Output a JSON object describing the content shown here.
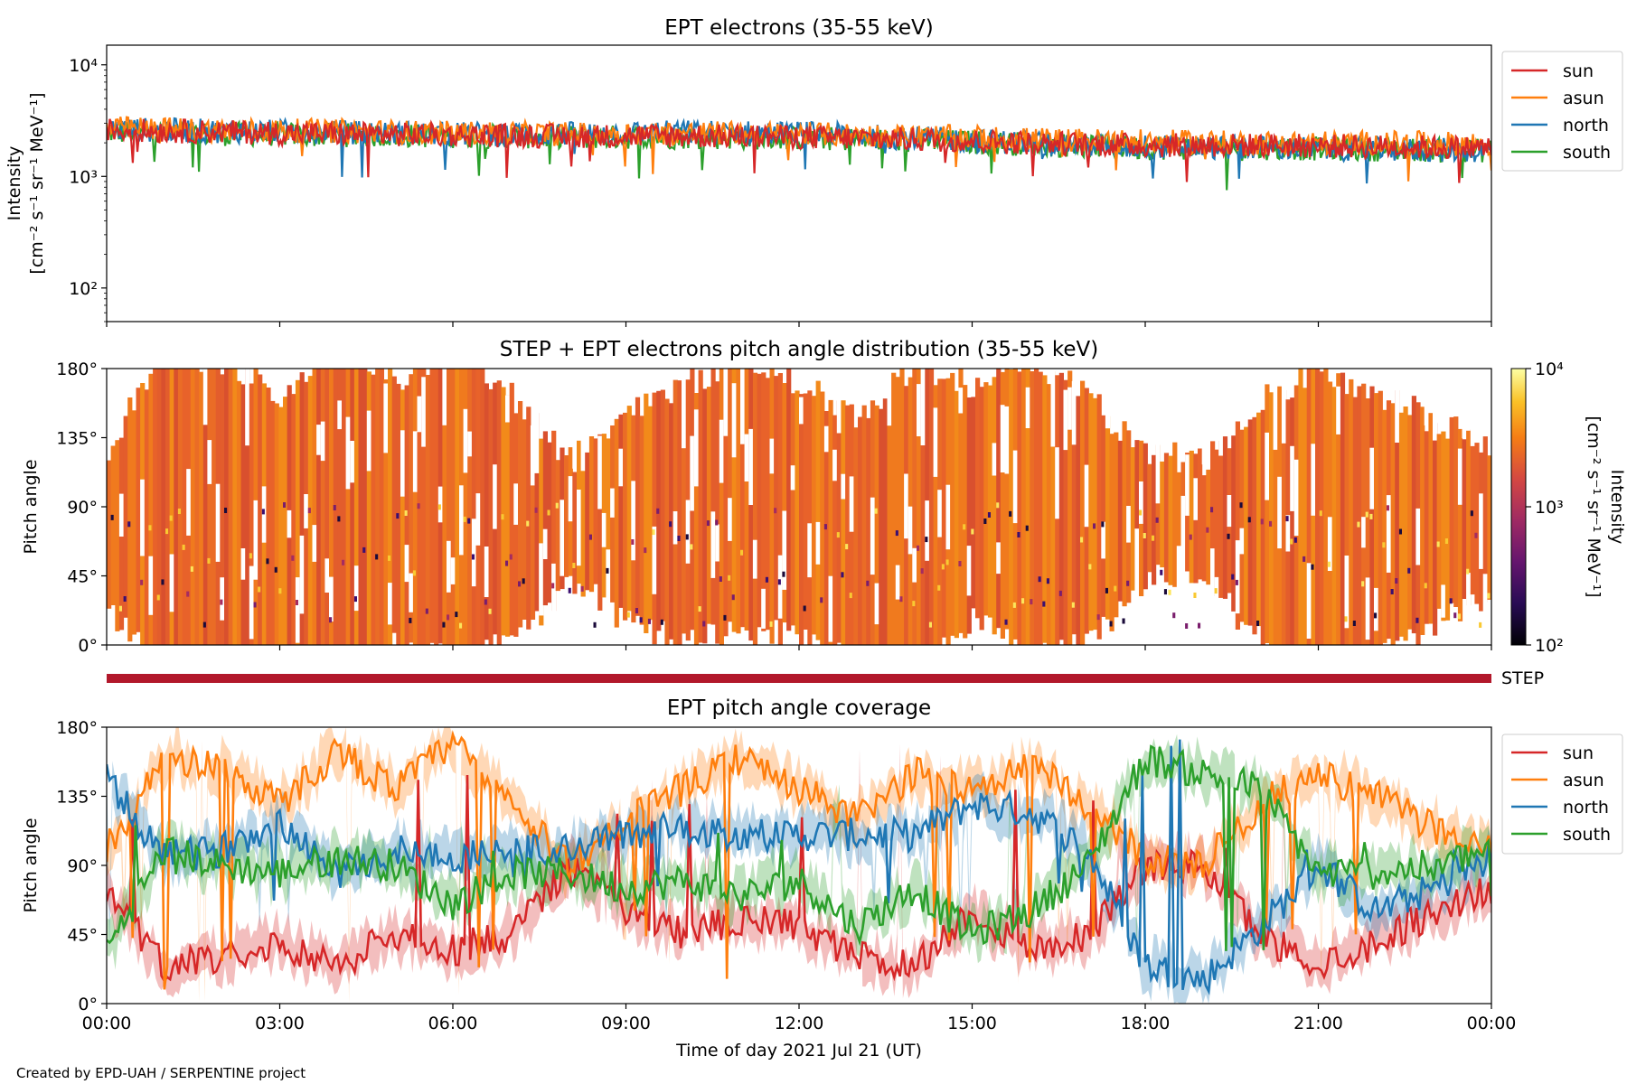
{
  "chart_data": [
    {
      "panel": "intensity",
      "type": "line",
      "title": "EPT electrons (35-55 keV)",
      "ylabel_line1": "Intensity",
      "ylabel_line2": "[cm⁻² s⁻¹ sr⁻¹ MeV⁻¹]",
      "yscale": "log",
      "ylim": [
        50,
        15000
      ],
      "yticks": [
        100,
        1000,
        10000
      ],
      "ytick_labels": [
        "10²",
        "10³",
        "10⁴"
      ],
      "xlim": [
        0,
        24
      ],
      "legend_position": "outside-right",
      "series": [
        {
          "name": "sun",
          "color": "#d62728",
          "x": [
            0,
            2,
            4,
            6,
            8,
            10,
            12,
            14,
            16,
            18,
            20,
            22,
            24
          ],
          "values": [
            2600,
            2500,
            2400,
            2350,
            2300,
            2300,
            2250,
            2150,
            2000,
            1900,
            1900,
            1850,
            1800
          ]
        },
        {
          "name": "asun",
          "color": "#ff7f0e",
          "x": [
            0,
            2,
            4,
            6,
            8,
            10,
            12,
            14,
            16,
            18,
            20,
            22,
            24
          ],
          "values": [
            2700,
            2600,
            2550,
            2450,
            2400,
            2450,
            2400,
            2300,
            2150,
            2050,
            2000,
            2000,
            1950
          ]
        },
        {
          "name": "north",
          "color": "#1f77b4",
          "x": [
            0,
            2,
            4,
            6,
            8,
            10,
            12,
            14,
            16,
            18,
            20,
            22,
            24
          ],
          "values": [
            2650,
            2550,
            2500,
            2400,
            2400,
            2500,
            2450,
            2200,
            2000,
            1850,
            1800,
            1750,
            1700
          ]
        },
        {
          "name": "south",
          "color": "#2ca02c",
          "x": [
            0,
            2,
            4,
            6,
            8,
            10,
            12,
            14,
            16,
            18,
            20,
            22,
            24
          ],
          "values": [
            2500,
            2400,
            2350,
            2300,
            2250,
            2250,
            2200,
            2100,
            1950,
            1800,
            1800,
            1750,
            1700
          ]
        }
      ]
    },
    {
      "panel": "pad",
      "type": "heatmap",
      "title": "STEP + EPT electrons pitch angle distribution (35-55 keV)",
      "ylabel": "Pitch angle",
      "ylim": [
        0,
        180
      ],
      "yticks": [
        0,
        45,
        90,
        135,
        180
      ],
      "ytick_labels": [
        "0°",
        "45°",
        "90°",
        "135°",
        "180°"
      ],
      "xlim": [
        0,
        24
      ],
      "colorbar": {
        "label_line1": "Intensity",
        "label_line2": "[cm⁻² s⁻¹ sr⁻¹ MeV⁻¹]",
        "scale": "log",
        "range": [
          100,
          10000
        ],
        "ticks": [
          100,
          1000,
          10000
        ],
        "tick_labels": [
          "10²",
          "10³",
          "10⁴"
        ],
        "colormap": "inferno"
      },
      "step_bar_label": "STEP",
      "step_bar_color": "#b2182b"
    },
    {
      "panel": "coverage",
      "type": "line",
      "title": "EPT pitch angle coverage",
      "ylabel": "Pitch angle",
      "xlabel": "Time of day 2021 Jul 21 (UT)",
      "ylim": [
        0,
        180
      ],
      "yticks": [
        0,
        45,
        90,
        135,
        180
      ],
      "ytick_labels": [
        "0°",
        "45°",
        "90°",
        "135°",
        "180°"
      ],
      "xlim": [
        0,
        24
      ],
      "xticks": [
        0,
        3,
        6,
        9,
        12,
        15,
        18,
        21,
        24
      ],
      "xtick_labels": [
        "00:00",
        "03:00",
        "06:00",
        "09:00",
        "12:00",
        "15:00",
        "18:00",
        "21:00",
        "00:00"
      ],
      "legend_position": "outside-right",
      "band_halfwidth_deg": 12,
      "series": [
        {
          "name": "sun",
          "color": "#d62728",
          "x": [
            0,
            1,
            2,
            3,
            4,
            5,
            6,
            7,
            8,
            9,
            10,
            11,
            12,
            13,
            14,
            15,
            16,
            17,
            18,
            19,
            20,
            21,
            22,
            23,
            24
          ],
          "values": [
            70,
            25,
            30,
            40,
            25,
            45,
            35,
            45,
            90,
            60,
            45,
            55,
            50,
            30,
            25,
            60,
            35,
            45,
            90,
            90,
            45,
            25,
            40,
            60,
            75
          ]
        },
        {
          "name": "asun",
          "color": "#ff7f0e",
          "x": [
            0,
            1,
            2,
            3,
            4,
            5,
            6,
            7,
            8,
            9,
            10,
            11,
            12,
            13,
            14,
            15,
            16,
            17,
            18,
            19,
            20,
            21,
            22,
            23,
            24
          ],
          "values": [
            100,
            160,
            155,
            130,
            165,
            140,
            170,
            130,
            90,
            120,
            140,
            160,
            140,
            120,
            150,
            140,
            155,
            130,
            95,
            90,
            130,
            150,
            135,
            115,
            100
          ]
        },
        {
          "name": "north",
          "color": "#1f77b4",
          "x": [
            0,
            1,
            2,
            3,
            4,
            5,
            6,
            7,
            8,
            9,
            10,
            11,
            12,
            13,
            14,
            15,
            16,
            17,
            18,
            19,
            20,
            21,
            22,
            23,
            24
          ],
          "values": [
            145,
            95,
            100,
            120,
            85,
            100,
            95,
            100,
            100,
            110,
            115,
            110,
            110,
            110,
            110,
            130,
            125,
            100,
            25,
            15,
            50,
            90,
            60,
            75,
            95
          ]
        },
        {
          "name": "south",
          "color": "#2ca02c",
          "x": [
            0,
            1,
            2,
            3,
            4,
            5,
            6,
            7,
            8,
            9,
            10,
            11,
            12,
            13,
            14,
            15,
            16,
            17,
            18,
            19,
            20,
            21,
            22,
            23,
            24
          ],
          "values": [
            35,
            100,
            90,
            85,
            95,
            90,
            65,
            85,
            85,
            75,
            80,
            70,
            80,
            50,
            75,
            45,
            60,
            90,
            160,
            150,
            140,
            85,
            85,
            90,
            100
          ]
        }
      ]
    }
  ],
  "credit": "Created by EPD-UAH / SERPENTINE project"
}
